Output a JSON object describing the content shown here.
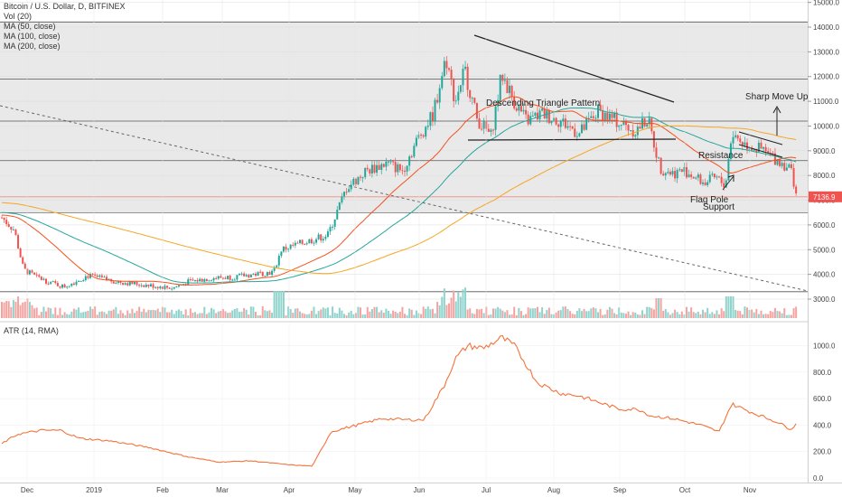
{
  "legend": {
    "title": "Bitcoin / U.S. Dollar, D, BITFINEX",
    "vol": "Vol (20)",
    "ma50": "MA (50, close)",
    "ma100": "MA (100, close)",
    "ma200": "MA (200, close)"
  },
  "atr_legend": "ATR (14, RMA)",
  "price_label": "7136.9",
  "colors": {
    "up": "#26a69a",
    "down": "#ef5350",
    "ma50": "#f4511e",
    "ma100": "#26a69a",
    "ma200": "#f5a623",
    "atr": "#f4733b",
    "price_tag": "#ef5350"
  },
  "chart_data": [
    {
      "type": "line",
      "title": "Bitcoin / U.S. Dollar, D, BITFINEX",
      "y_ticks": [
        "3000.0",
        "4000.0",
        "5000.0",
        "6000.0",
        "7000.0",
        "8000.0",
        "9000.0",
        "10000.0",
        "11000.0",
        "12000.0",
        "13000.0",
        "14000.0",
        "15000.0"
      ],
      "ylim": [
        2300,
        15000
      ],
      "x_ticks": [
        "Dec",
        "2019",
        "Feb",
        "Mar",
        "Apr",
        "May",
        "Jun",
        "Jul",
        "Aug",
        "Sep",
        "Oct",
        "Nov"
      ],
      "x": [
        "Dec",
        "2019",
        "Feb",
        "Mar",
        "Apr",
        "May",
        "Jun",
        "Jul",
        "Aug",
        "Sep",
        "Oct",
        "Nov"
      ],
      "series": [
        {
          "values": [
            4000,
            3800,
            3500,
            3900,
            4100,
            5300,
            8500,
            11000,
            10500,
            10300,
            8300,
            8800
          ]
        }
      ],
      "horizontal_levels": [
        14200,
        11900,
        10200,
        8600,
        6500,
        3300
      ],
      "current_price": 7136.9,
      "annotations": [
        "Descending Triangle Pattern",
        "Sharp Move Up",
        "Resistance",
        "Flag Pole",
        "Support"
      ],
      "grid": true
    },
    {
      "type": "line",
      "title": "ATR (14, RMA)",
      "y_ticks": [
        "0.0",
        "200.0",
        "400.0",
        "600.0",
        "800.0",
        "1000.0"
      ],
      "ylim": [
        0,
        1100
      ],
      "series": [
        {
          "values": [
            320,
            270,
            160,
            120,
            110,
            400,
            580,
            1020,
            620,
            520,
            360,
            430
          ]
        }
      ]
    }
  ]
}
